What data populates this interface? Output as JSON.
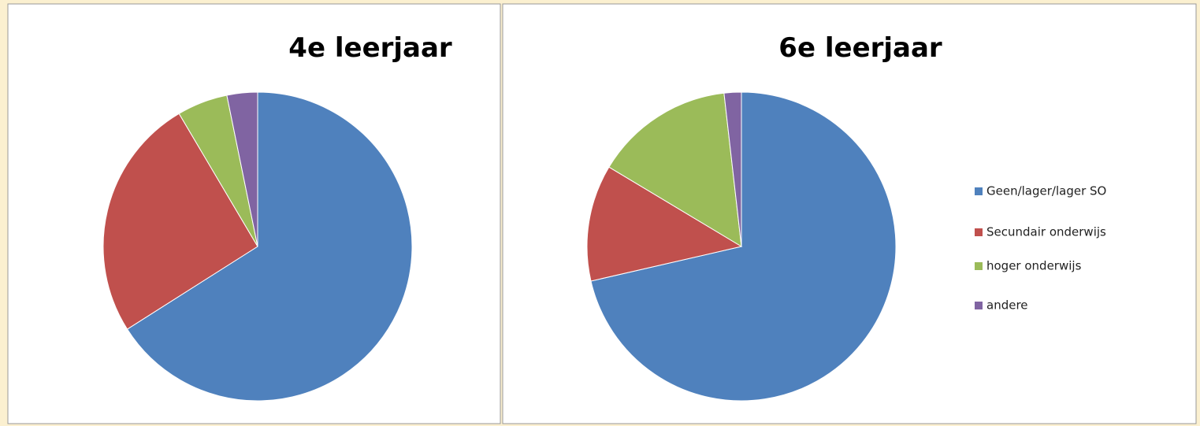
{
  "chart_data": [
    {
      "type": "pie",
      "title": "4e leerjaar",
      "categories": [
        "Geen/lager/lager SO",
        "Secundair onderwijs",
        "hoger onderwijs",
        "andere"
      ],
      "values": [
        66,
        25.5,
        5.3,
        3.2
      ],
      "colors": [
        "#4f81bd",
        "#c0504d",
        "#9bbb59",
        "#8064a2"
      ]
    },
    {
      "type": "pie",
      "title": "6e leerjaar",
      "categories": [
        "Geen/lager/lager SO",
        "Secundair onderwijs",
        "hoger onderwijs",
        "andere"
      ],
      "values": [
        71.4,
        12.2,
        14.6,
        1.8
      ],
      "colors": [
        "#4f81bd",
        "#c0504d",
        "#9bbb59",
        "#8064a2"
      ],
      "legend": "right"
    }
  ]
}
